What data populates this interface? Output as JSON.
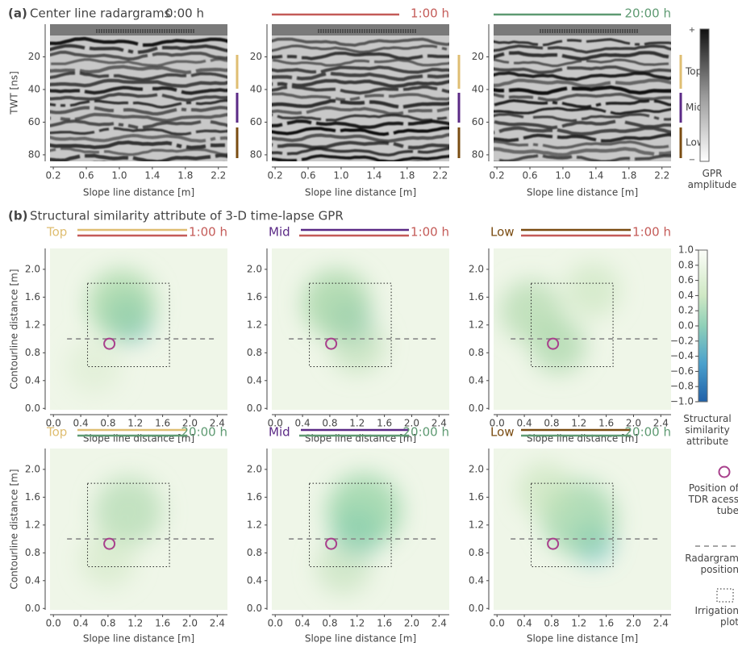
{
  "panel_a": {
    "label": "(a)",
    "title": "Center line radargrams",
    "times": [
      "0:00 h",
      "1:00 h",
      "20:00 h"
    ],
    "y_label": "TWT [ns]",
    "x_label": "Slope line distance [m]",
    "xlim": [
      0.16,
      2.31
    ],
    "xticks": [
      0.2,
      0.6,
      {
        "value": 1,
        "label": "1.0"
      },
      1.4,
      1.8,
      2.2
    ],
    "ylim": [
      0,
      84
    ],
    "yticks": [
      20,
      40,
      60,
      80
    ],
    "layers": [
      "Top",
      "Mid",
      "Low"
    ],
    "colorbar": {
      "max": "+",
      "min": "−",
      "label": "GPR amplitude"
    }
  },
  "panel_b": {
    "label": "(b)",
    "title": "Structural similarity attribute of 3-D time-lapse GPR",
    "row_times": [
      "1:00 h",
      "20:00 h"
    ],
    "layers": [
      "Top",
      "Mid",
      "Low"
    ],
    "y_label": "Contourline distance [m]",
    "x_label": "Slope line distance [m]",
    "xlim": [
      -0.05,
      2.55
    ],
    "xticks": [
      {
        "value": 0,
        "label": "0.0"
      },
      0.4,
      0.8,
      1.2,
      1.6,
      {
        "value": 2,
        "label": "2.0"
      },
      2.4
    ],
    "ylim": [
      -0.02,
      2.3
    ],
    "yticks": [
      {
        "value": 0,
        "label": "0.0"
      },
      0.4,
      0.8,
      1.2,
      1.6,
      {
        "value": 2,
        "label": "2.0"
      }
    ],
    "colorbar": {
      "lim": [
        -1,
        1
      ],
      "label": "Structural similarity attribute",
      "ticks": [
        {
          "value": 1,
          "label": "1.0"
        },
        0.8,
        0.6,
        0.4,
        0.2,
        {
          "value": 0,
          "label": "0.0"
        },
        {
          "value": -0.2,
          "label": "−0.2"
        },
        {
          "value": -0.4,
          "label": "−0.4"
        },
        {
          "value": -0.6,
          "label": "−0.6"
        },
        {
          "value": -0.8,
          "label": "−0.8"
        },
        {
          "value": -1,
          "label": "−1.0"
        }
      ]
    },
    "legend": [
      "Position of TDR acess tube",
      "Radargram position",
      "Irrigation plot"
    ]
  }
}
